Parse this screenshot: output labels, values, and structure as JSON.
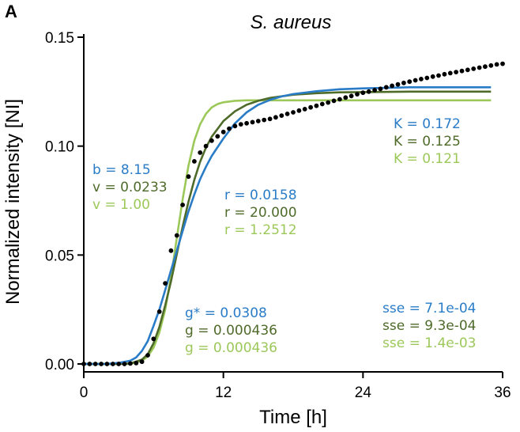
{
  "chart_data": {
    "type": "line",
    "panel_label": "A",
    "title": "S. aureus",
    "xlabel": "Time [h]",
    "ylabel": "Normalized intensity [NI]",
    "xlim": [
      0,
      36
    ],
    "ylim": [
      0,
      0.15
    ],
    "xticks": [
      0,
      12,
      24,
      36
    ],
    "xtick_labels": [
      "0",
      "12",
      "24",
      "36"
    ],
    "yticks": [
      0,
      0.05,
      0.1,
      0.15
    ],
    "ytick_labels": [
      "0.00",
      "0.05",
      "0.10",
      "0.15"
    ],
    "grid": false,
    "colors": {
      "observed": "#000000",
      "blue": "#2a7cc7",
      "dark": "#4f6b2a",
      "light": "#9cc85a"
    },
    "observed": {
      "x": [
        0,
        0.5,
        1,
        1.5,
        2,
        2.5,
        3,
        3.5,
        4,
        4.5,
        5,
        5.5,
        6,
        6.5,
        7,
        7.5,
        8,
        8.5,
        9,
        9.5,
        10,
        10.5,
        11,
        11.5,
        12,
        12.5,
        13,
        13.5,
        14,
        14.5,
        15,
        15.5,
        16,
        16.5,
        17,
        17.5,
        18,
        18.5,
        19,
        19.5,
        20,
        20.5,
        21,
        21.5,
        22,
        22.5,
        23,
        23.5,
        24,
        24.5,
        25,
        25.5,
        26,
        26.5,
        27,
        27.5,
        28,
        28.5,
        29,
        29.5,
        30,
        30.5,
        31,
        31.5,
        32,
        32.5,
        33,
        33.5,
        34,
        34.5,
        35,
        35.5,
        36
      ],
      "y": [
        0,
        0,
        0,
        0,
        0,
        0,
        0,
        0,
        0.0002,
        0.0004,
        0.001,
        0.004,
        0.0115,
        0.024,
        0.037,
        0.052,
        0.059,
        0.073,
        0.086,
        0.093,
        0.097,
        0.1,
        0.1025,
        0.1045,
        0.1065,
        0.108,
        0.1092,
        0.11,
        0.1105,
        0.111,
        0.1115,
        0.112,
        0.1125,
        0.1132,
        0.114,
        0.1148,
        0.1155,
        0.1163,
        0.117,
        0.1178,
        0.1185,
        0.1193,
        0.12,
        0.1208,
        0.1215,
        0.1223,
        0.123,
        0.1238,
        0.1245,
        0.125,
        0.1257,
        0.1263,
        0.127,
        0.1277,
        0.1283,
        0.129,
        0.1296,
        0.1302,
        0.1308,
        0.1313,
        0.1319,
        0.1324,
        0.133,
        0.1335,
        0.134,
        0.1345,
        0.135,
        0.1355,
        0.136,
        0.1365,
        0.137,
        0.1375,
        0.1378
      ]
    },
    "series": [
      {
        "color": "#2a7cc7",
        "x": [
          0,
          2,
          3,
          4,
          4.5,
          5,
          5.5,
          6,
          6.5,
          7,
          7.5,
          8,
          8.5,
          9,
          9.5,
          10,
          10.5,
          11,
          12,
          13,
          14,
          15,
          16,
          17,
          18,
          20,
          22,
          24,
          28,
          32,
          35
        ],
        "y": [
          0,
          0,
          0.0005,
          0.0015,
          0.003,
          0.006,
          0.0105,
          0.0175,
          0.025,
          0.034,
          0.043,
          0.052,
          0.061,
          0.07,
          0.0778,
          0.0848,
          0.0905,
          0.0955,
          0.1035,
          0.1105,
          0.1155,
          0.119,
          0.1212,
          0.1228,
          0.1239,
          0.1252,
          0.1261,
          0.1265,
          0.127,
          0.127,
          0.127
        ]
      },
      {
        "color": "#4f6b2a",
        "x": [
          0,
          3,
          4,
          5,
          5.5,
          6,
          6.5,
          7,
          7.5,
          8,
          8.5,
          9,
          9.5,
          10,
          10.5,
          11,
          12,
          13,
          14,
          15,
          16,
          18,
          20,
          22,
          24,
          28,
          32,
          35
        ],
        "y": [
          0,
          0,
          0.0002,
          0.002,
          0.0045,
          0.0095,
          0.017,
          0.027,
          0.038,
          0.0505,
          0.063,
          0.0745,
          0.0845,
          0.0928,
          0.0993,
          0.1043,
          0.1115,
          0.116,
          0.119,
          0.1208,
          0.1221,
          0.1236,
          0.1243,
          0.1247,
          0.1248,
          0.125,
          0.125,
          0.125
        ]
      },
      {
        "color": "#9cc85a",
        "x": [
          0,
          4,
          5,
          5.5,
          6,
          6.5,
          7,
          7.5,
          8,
          8.5,
          9,
          9.5,
          10,
          10.5,
          11,
          11.5,
          12,
          13,
          14,
          16,
          20,
          24,
          30,
          35
        ],
        "y": [
          0,
          0,
          0.0015,
          0.0035,
          0.0075,
          0.0145,
          0.025,
          0.04,
          0.058,
          0.0755,
          0.091,
          0.1025,
          0.11,
          0.1148,
          0.1178,
          0.1193,
          0.1201,
          0.1208,
          0.121,
          0.121,
          0.121,
          0.121,
          0.121,
          0.121
        ]
      }
    ],
    "annotations": {
      "params_b_v": [
        {
          "text": "b = 8.15",
          "color": "#2a7cc7"
        },
        {
          "text": "v = 0.0233",
          "color": "#4f6b2a"
        },
        {
          "text": "v = 1.00",
          "color": "#9cc85a"
        }
      ],
      "params_r": [
        {
          "text": "r = 0.0158",
          "color": "#2a7cc7"
        },
        {
          "text": "r = 20.000",
          "color": "#4f6b2a"
        },
        {
          "text": "r = 1.2512",
          "color": "#9cc85a"
        }
      ],
      "params_K": [
        {
          "text": "K = 0.172",
          "color": "#2a7cc7"
        },
        {
          "text": "K = 0.125",
          "color": "#4f6b2a"
        },
        {
          "text": "K = 0.121",
          "color": "#9cc85a"
        }
      ],
      "params_g": [
        {
          "text": "g* = 0.0308",
          "color": "#2a7cc7"
        },
        {
          "text": "g = 0.000436",
          "color": "#4f6b2a"
        },
        {
          "text": "g = 0.000436",
          "color": "#9cc85a"
        }
      ],
      "params_sse": [
        {
          "text": "sse = 7.1e-04",
          "color": "#2a7cc7"
        },
        {
          "text": "sse = 9.3e-04",
          "color": "#4f6b2a"
        },
        {
          "text": "sse = 1.4e-03",
          "color": "#9cc85a"
        }
      ]
    }
  }
}
